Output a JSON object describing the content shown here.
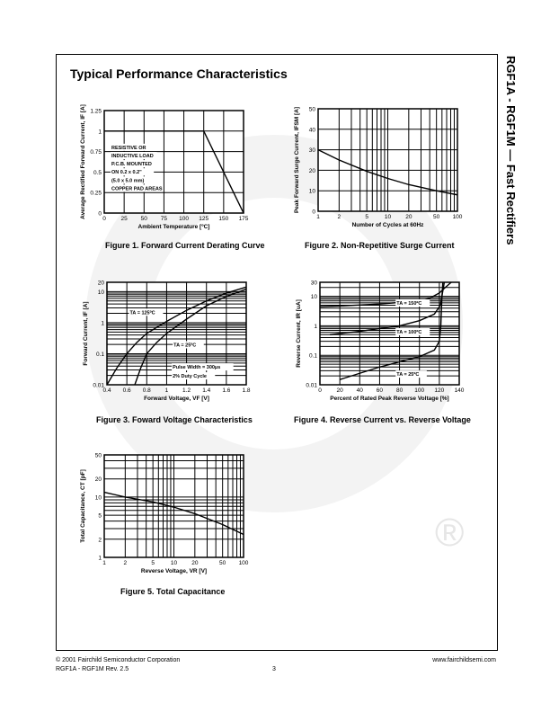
{
  "header": {
    "title": "Typical Performance Characteristics",
    "side_title": "RGF1A - RGF1M — Fast Rectifiers"
  },
  "footer": {
    "copyright": "© 2001 Fairchild Semiconductor Corporation",
    "website": "www.fairchildsemi.com",
    "rev": "RGF1A - RGF1M Rev. 2.5",
    "page": "3"
  },
  "watermark": {
    "symbol": "®"
  },
  "chart_data": [
    {
      "type": "line",
      "caption": "Figure 1. Forward Current Derating Curve",
      "xlabel": "Ambient Temperature [ºC]",
      "ylabel": "Average Rectified Forward Current, IF [A]",
      "xscale": "linear",
      "yscale": "linear",
      "xlim": [
        0,
        175
      ],
      "ylim": [
        0,
        1.25
      ],
      "xticks": [
        0,
        25,
        50,
        75,
        100,
        125,
        150,
        175
      ],
      "yticks": [
        0,
        0.25,
        0.5,
        0.75,
        1,
        1.25
      ],
      "grid": true,
      "annotations": [
        "RESISTIVE OR",
        "INDUCTIVE LOAD",
        "P.C.B. MOUNTED",
        "ON 0.2 x 0.2\"",
        "(5.0 x 5.0 mm)",
        "COPPER PAD AREAS"
      ],
      "series": [
        {
          "x": [
            0,
            125,
            175
          ],
          "y": [
            1,
            1,
            0
          ]
        }
      ]
    },
    {
      "type": "line",
      "caption": "Figure 2. Non-Repetitive Surge Current",
      "xlabel": "Number of Cycles at 60Hz",
      "ylabel": "Peak Forward Surge Current, IFSM [A]",
      "xscale": "log",
      "yscale": "linear",
      "xlim": [
        1,
        100
      ],
      "ylim": [
        0,
        50
      ],
      "xticks": [
        1,
        2,
        5,
        10,
        20,
        50,
        100
      ],
      "yticks": [
        0,
        10,
        20,
        30,
        40,
        50
      ],
      "grid": true,
      "annotations": [],
      "series": [
        {
          "x": [
            1,
            2,
            5,
            10,
            20,
            50,
            100
          ],
          "y": [
            30,
            25,
            19.5,
            16,
            13,
            10,
            8
          ]
        }
      ]
    },
    {
      "type": "line",
      "caption": "Figure 3. Foward Voltage Characteristics",
      "xlabel": "Forward Voltage, VF [V]",
      "ylabel": "Forward Current, IF [A]",
      "xscale": "linear",
      "yscale": "log",
      "xlim": [
        0.4,
        1.8
      ],
      "ylim": [
        0.01,
        20
      ],
      "xticks": [
        0.4,
        0.6,
        0.8,
        1,
        1.2,
        1.4,
        1.6,
        1.8
      ],
      "yticks": [
        0.01,
        0.1,
        1,
        10,
        20
      ],
      "grid": true,
      "annotations": [
        "TA = 125ºC",
        "TA = 25ºC",
        "Pulse Width = 300μs",
        "2% Duty Cycle"
      ],
      "series": [
        {
          "name": "TA = 125ºC",
          "x": [
            0.4,
            0.5,
            0.6,
            0.7,
            0.8,
            1.0,
            1.2,
            1.4,
            1.6,
            1.8
          ],
          "y": [
            0.01,
            0.035,
            0.1,
            0.23,
            0.45,
            1.1,
            2.5,
            5,
            9,
            14
          ]
        },
        {
          "name": "TA = 25ºC",
          "x": [
            0.68,
            0.74,
            0.8,
            0.9,
            1.0,
            1.2,
            1.4,
            1.6,
            1.8
          ],
          "y": [
            0.01,
            0.035,
            0.1,
            0.23,
            0.45,
            1.3,
            3.5,
            7,
            12
          ]
        }
      ]
    },
    {
      "type": "line",
      "caption": "Figure 4. Reverse Current vs. Reverse Voltage",
      "xlabel": "Percent of Rated Peak Reverse Voltage [%]",
      "ylabel": "Reverse Current, IR [uA]",
      "xscale": "linear",
      "yscale": "log",
      "xlim": [
        0,
        140
      ],
      "ylim": [
        0.01,
        30
      ],
      "xticks": [
        0,
        20,
        40,
        60,
        80,
        100,
        120,
        140
      ],
      "yticks": [
        0.01,
        0.1,
        1,
        10,
        30
      ],
      "grid": true,
      "annotations": [
        "TA = 150ºC",
        "TA = 100ºC",
        "TA = 25ºC"
      ],
      "series": [
        {
          "name": "TA = 150ºC",
          "x": [
            0,
            20,
            60,
            100,
            110,
            120,
            126,
            132
          ],
          "y": [
            4.5,
            4.7,
            5.5,
            7,
            8.5,
            13,
            20,
            30
          ]
        },
        {
          "name": "TA = 100ºC",
          "x": [
            10,
            40,
            80,
            100,
            115,
            121,
            123,
            125
          ],
          "y": [
            0.5,
            0.65,
            1,
            1.5,
            2.5,
            5,
            12,
            30
          ]
        },
        {
          "name": "TA = 25ºC",
          "x": [
            20,
            60,
            100,
            115,
            120,
            121.5,
            122.5,
            123.5
          ],
          "y": [
            0.015,
            0.04,
            0.09,
            0.15,
            0.3,
            1,
            8,
            30
          ]
        }
      ]
    },
    {
      "type": "line",
      "caption": "Figure 5. Total Capacitance",
      "xlabel": "Reverse Voltage, VR [V]",
      "ylabel": "Total Capacitance, CT [pF]",
      "xscale": "log",
      "yscale": "log",
      "xlim": [
        1,
        100
      ],
      "ylim": [
        1,
        50
      ],
      "xticks": [
        1,
        2,
        5,
        10,
        20,
        50,
        100
      ],
      "yticks": [
        1,
        2,
        5,
        10,
        20,
        50
      ],
      "grid": true,
      "annotations": [],
      "series": [
        {
          "x": [
            1,
            2,
            5,
            10,
            20,
            50,
            100
          ],
          "y": [
            12,
            10,
            8.3,
            6.8,
            5.3,
            3.5,
            2.4
          ]
        }
      ]
    }
  ]
}
